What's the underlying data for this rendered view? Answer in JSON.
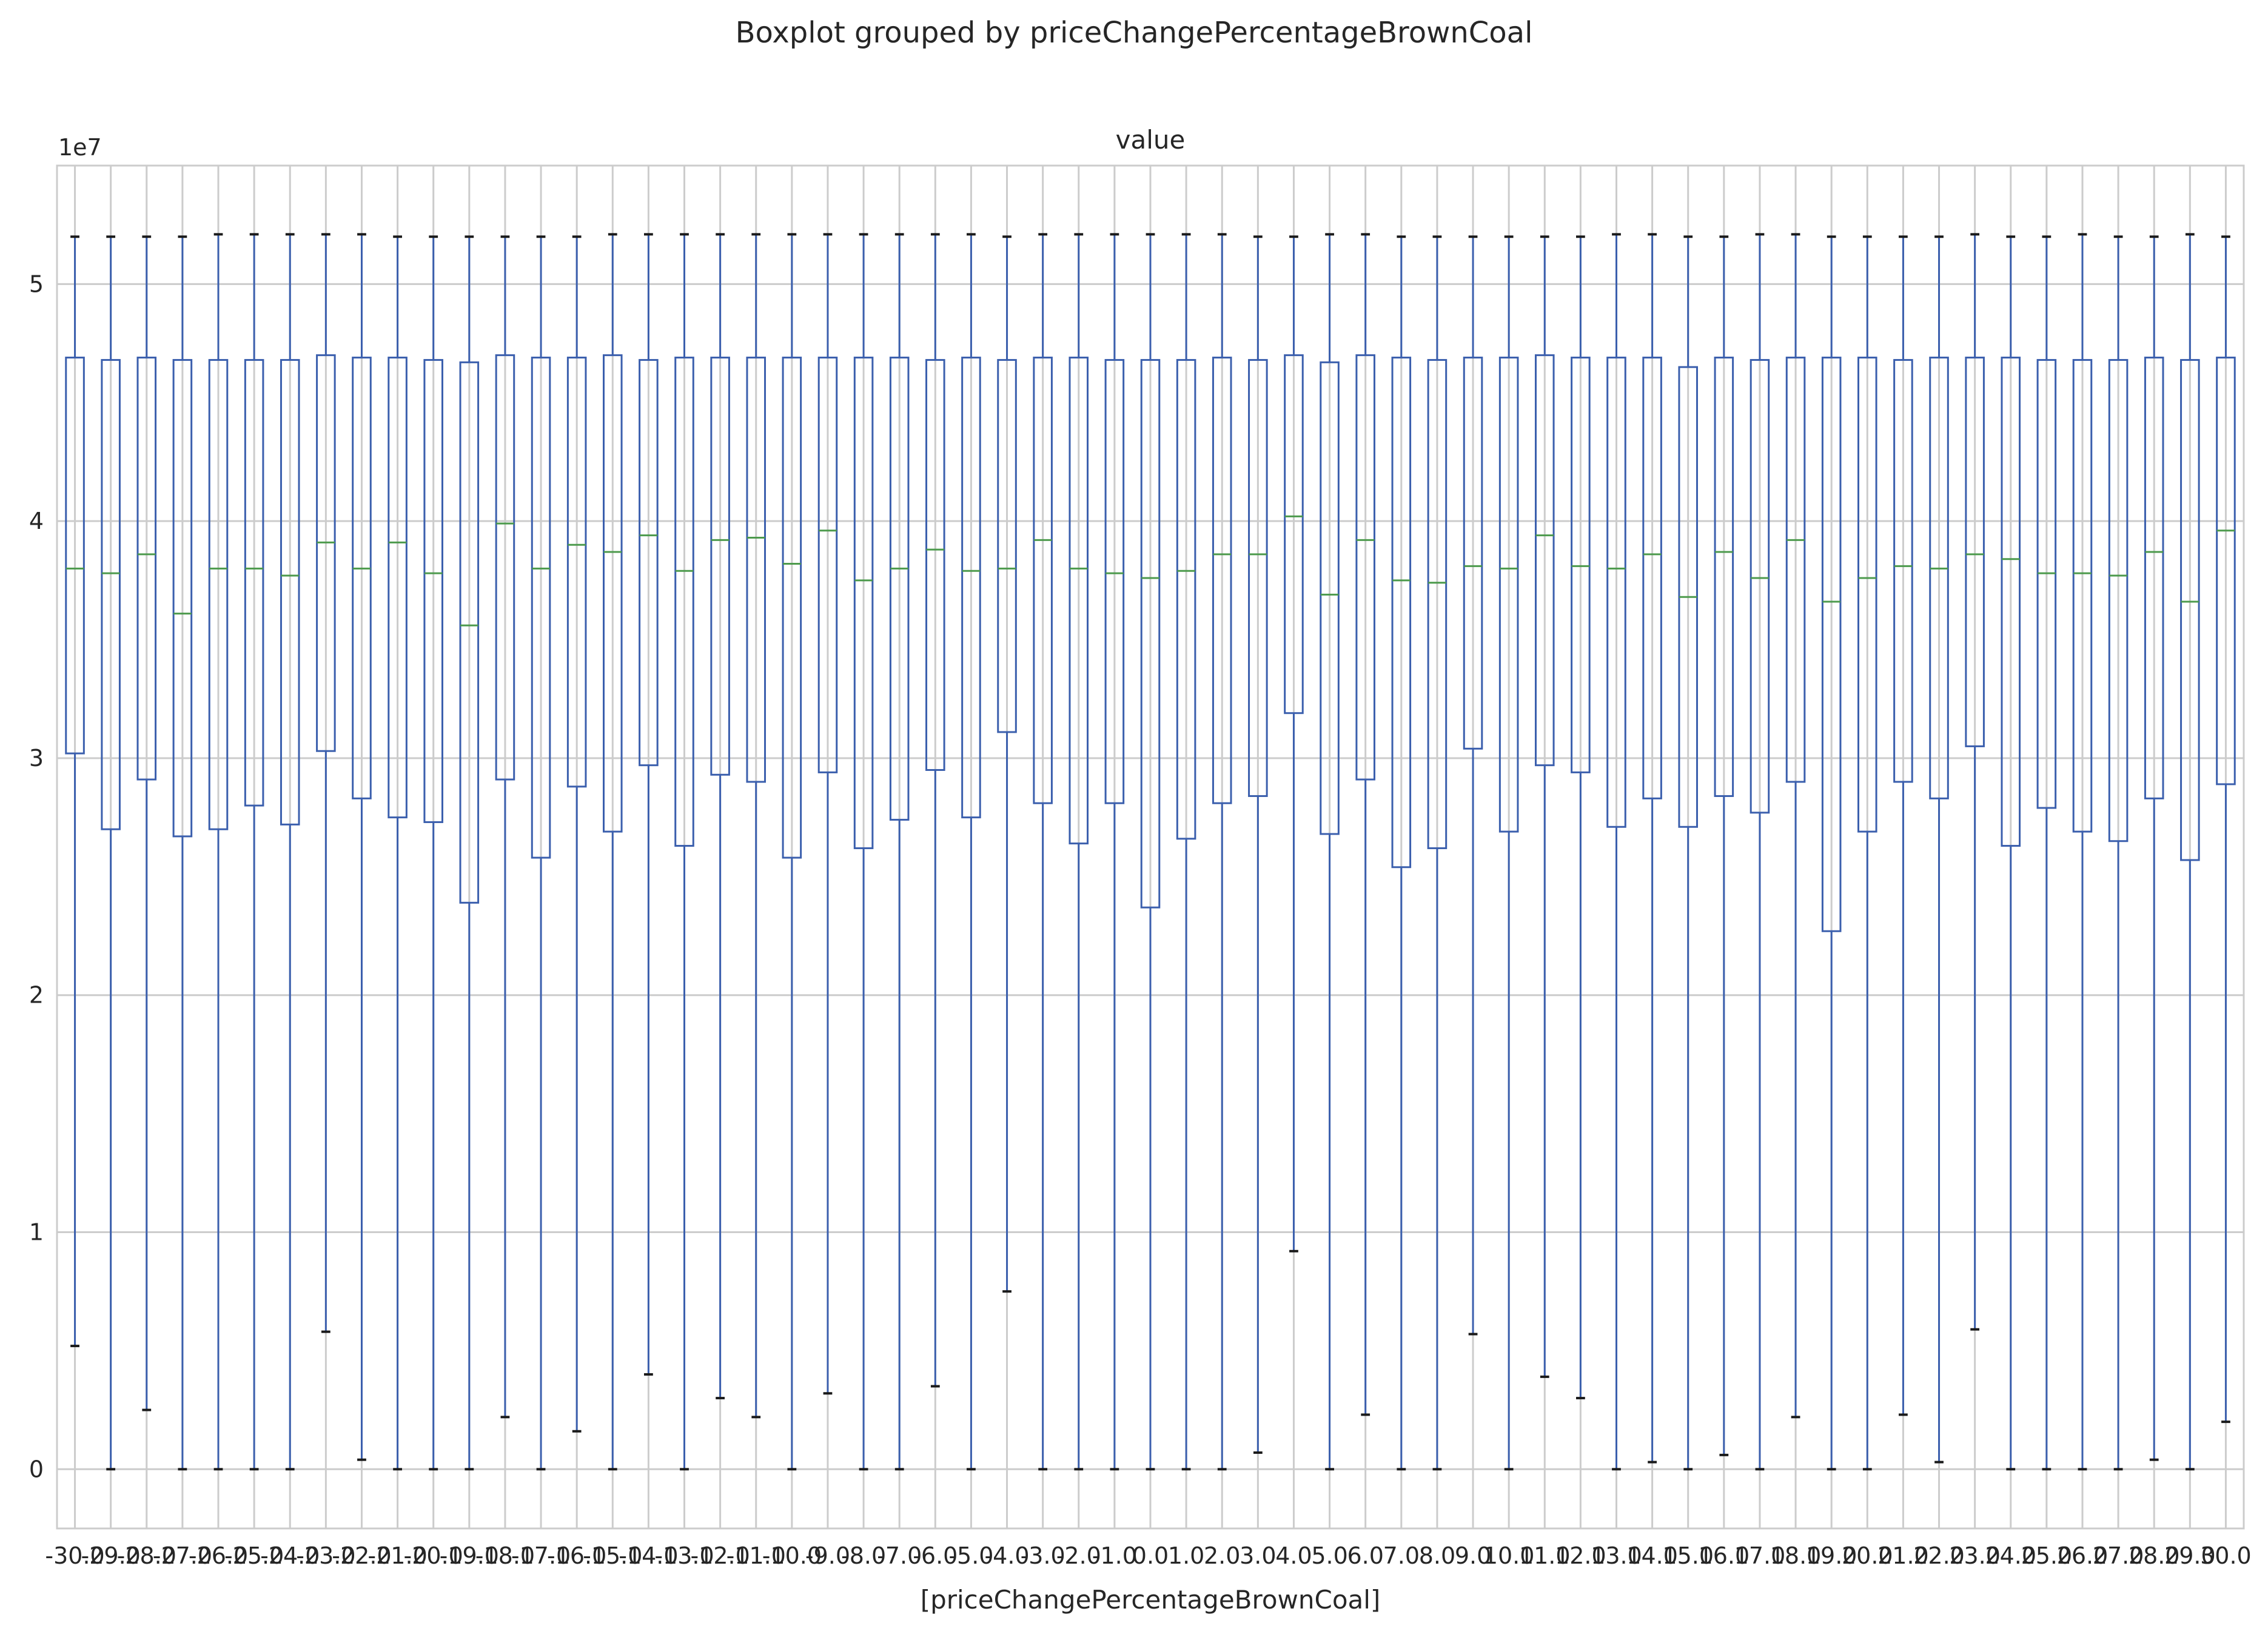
{
  "chart_data": {
    "type": "boxplot",
    "suptitle": "Boxplot grouped by priceChangePercentageBrownCoal",
    "title": "value",
    "xlabel": "[priceChangePercentageBrownCoal]",
    "ylabel": "",
    "y_offset_label": "1e7",
    "y_scale": 10000000,
    "ylim": [
      -0.25,
      5.5
    ],
    "yticks": [
      0,
      1,
      2,
      3,
      4,
      5
    ],
    "grid": true,
    "colors": {
      "box": "#3b5fad",
      "median": "#4c9a4c",
      "grid": "#cccccc",
      "frame": "#cccccc"
    },
    "categories": [
      "-30.0",
      "-29.0",
      "-28.0",
      "-27.0",
      "-26.0",
      "-25.0",
      "-24.0",
      "-23.0",
      "-22.0",
      "-21.0",
      "-20.0",
      "-19.0",
      "-18.0",
      "-17.0",
      "-16.0",
      "-15.0",
      "-14.0",
      "-13.0",
      "-12.0",
      "-11.0",
      "-10.0",
      "-9.0",
      "-8.0",
      "-7.0",
      "-6.0",
      "-5.0",
      "-4.0",
      "-3.0",
      "-2.0",
      "-1.0",
      "0.0",
      "1.0",
      "2.0",
      "3.0",
      "4.0",
      "5.0",
      "6.0",
      "7.0",
      "8.0",
      "9.0",
      "10.0",
      "11.0",
      "12.0",
      "13.0",
      "14.0",
      "15.0",
      "16.0",
      "17.0",
      "18.0",
      "19.0",
      "20.0",
      "21.0",
      "22.0",
      "23.0",
      "24.0",
      "25.0",
      "26.0",
      "27.0",
      "28.0",
      "29.0",
      "30.0"
    ],
    "series": [
      {
        "whisker_low": [
          0.52,
          0.0,
          0.25,
          0.0,
          0.0,
          0.0,
          0.0,
          0.58,
          0.04,
          0.0,
          0.0,
          0.0,
          0.22,
          0.0,
          0.16,
          0.0,
          0.4,
          0.0,
          0.3,
          0.22,
          0.0,
          0.32,
          0.0,
          0.0,
          0.35,
          0.0,
          0.75,
          0.0,
          0.0,
          0.0,
          0.0,
          0.0,
          0.0,
          0.07,
          0.92,
          0.0,
          0.23,
          0.0,
          0.0,
          0.57,
          0.0,
          0.39,
          0.3,
          0.0,
          0.03,
          0.0,
          0.06,
          0.0,
          0.22,
          0.0,
          0.0,
          0.23,
          0.03,
          0.59,
          0.0,
          0.0,
          0.0,
          0.0,
          0.04,
          0.0,
          0.2
        ],
        "q1": [
          3.02,
          2.7,
          2.91,
          2.67,
          2.7,
          2.8,
          2.72,
          3.03,
          2.83,
          2.75,
          2.73,
          2.39,
          2.91,
          2.58,
          2.88,
          2.69,
          2.97,
          2.63,
          2.93,
          2.9,
          2.58,
          2.94,
          2.62,
          2.74,
          2.95,
          2.75,
          3.11,
          2.81,
          2.64,
          2.81,
          2.37,
          2.66,
          2.81,
          2.84,
          3.19,
          2.68,
          2.91,
          2.54,
          2.62,
          3.04,
          2.69,
          2.97,
          2.94,
          2.71,
          2.83,
          2.71,
          2.84,
          2.77,
          2.9,
          2.27,
          2.69,
          2.9,
          2.83,
          3.05,
          2.63,
          2.79,
          2.69,
          2.65,
          2.83,
          2.57,
          2.89
        ],
        "median": [
          3.8,
          3.78,
          3.86,
          3.61,
          3.8,
          3.8,
          3.77,
          3.91,
          3.8,
          3.91,
          3.78,
          3.56,
          3.99,
          3.8,
          3.9,
          3.87,
          3.94,
          3.79,
          3.92,
          3.93,
          3.82,
          3.96,
          3.75,
          3.8,
          3.88,
          3.79,
          3.8,
          3.92,
          3.8,
          3.78,
          3.76,
          3.79,
          3.86,
          3.86,
          4.02,
          3.69,
          3.92,
          3.75,
          3.74,
          3.81,
          3.8,
          3.94,
          3.81,
          3.8,
          3.86,
          3.68,
          3.87,
          3.76,
          3.92,
          3.66,
          3.76,
          3.81,
          3.8,
          3.86,
          3.84,
          3.78,
          3.78,
          3.77,
          3.87,
          3.66,
          3.96
        ],
        "q3": [
          4.69,
          4.68,
          4.69,
          4.68,
          4.68,
          4.68,
          4.68,
          4.7,
          4.69,
          4.69,
          4.68,
          4.67,
          4.7,
          4.69,
          4.69,
          4.7,
          4.68,
          4.69,
          4.69,
          4.69,
          4.69,
          4.69,
          4.69,
          4.69,
          4.68,
          4.69,
          4.68,
          4.69,
          4.69,
          4.68,
          4.68,
          4.68,
          4.69,
          4.68,
          4.7,
          4.67,
          4.7,
          4.69,
          4.68,
          4.69,
          4.69,
          4.7,
          4.69,
          4.69,
          4.69,
          4.65,
          4.69,
          4.68,
          4.69,
          4.69,
          4.69,
          4.68,
          4.69,
          4.69,
          4.69,
          4.68,
          4.68,
          4.68,
          4.69,
          4.68,
          4.69
        ],
        "whisker_high": [
          5.2,
          5.2,
          5.2,
          5.2,
          5.21,
          5.21,
          5.21,
          5.21,
          5.21,
          5.2,
          5.2,
          5.2,
          5.2,
          5.2,
          5.2,
          5.21,
          5.21,
          5.21,
          5.21,
          5.21,
          5.21,
          5.21,
          5.21,
          5.21,
          5.21,
          5.21,
          5.2,
          5.21,
          5.21,
          5.21,
          5.21,
          5.21,
          5.21,
          5.2,
          5.2,
          5.21,
          5.21,
          5.2,
          5.2,
          5.2,
          5.2,
          5.2,
          5.2,
          5.21,
          5.21,
          5.2,
          5.2,
          5.21,
          5.21,
          5.2,
          5.2,
          5.2,
          5.2,
          5.21,
          5.2,
          5.2,
          5.21,
          5.2,
          5.2,
          5.21,
          5.2
        ]
      }
    ]
  }
}
